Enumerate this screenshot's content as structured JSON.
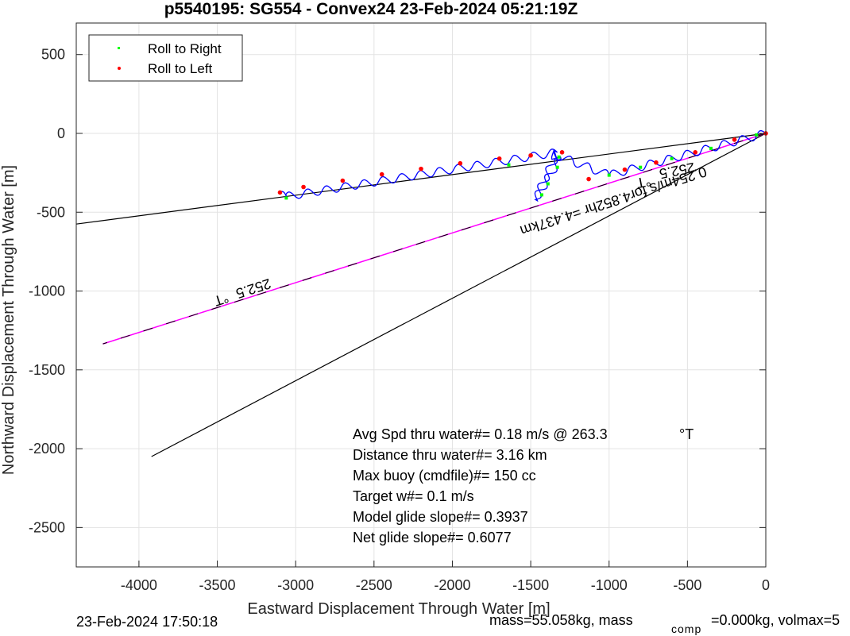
{
  "chart_data": {
    "type": "line",
    "title": "p5540195: SG554 - Convex24 23-Feb-2024 05:21:19Z",
    "xlabel": "Eastward Displacement Through Water [m]",
    "ylabel": "Northward Displacement Through Water [m]",
    "xlim": [
      -4400,
      0
    ],
    "ylim": [
      -2750,
      700
    ],
    "xticks": [
      -4000,
      -3500,
      -3000,
      -2500,
      -2000,
      -1500,
      -1000,
      -500,
      0
    ],
    "yticks": [
      500,
      0,
      -500,
      -1000,
      -1500,
      -2000,
      -2500
    ],
    "grid": true,
    "legend_position": "top-left",
    "legend": [
      "Roll to Right",
      "Roll to Left"
    ],
    "series": [
      {
        "name": "track",
        "color": "#0000ff",
        "points": [
          [
            0,
            0
          ],
          [
            -1000,
            -265
          ],
          [
            -1360,
            -130
          ],
          [
            -1350,
            -160
          ],
          [
            -1310,
            -150
          ],
          [
            -1470,
            -420
          ],
          [
            -1330,
            -120
          ],
          [
            -3060,
            -400
          ],
          [
            -3110,
            -370
          ]
        ]
      },
      {
        "name": "Roll to Right",
        "color": "#00ff00",
        "points": [
          [
            -60,
            -10
          ],
          [
            -350,
            -95
          ],
          [
            -600,
            -160
          ],
          [
            -800,
            -215
          ],
          [
            -1000,
            -265
          ],
          [
            -1320,
            -150
          ],
          [
            -1330,
            -215
          ],
          [
            -1390,
            -320
          ],
          [
            -1430,
            -390
          ],
          [
            -1640,
            -200
          ],
          [
            -3060,
            -410
          ]
        ]
      },
      {
        "name": "Roll to Left",
        "color": "#ff0000",
        "points": [
          [
            0,
            0
          ],
          [
            -200,
            -40
          ],
          [
            -450,
            -120
          ],
          [
            -700,
            -185
          ],
          [
            -900,
            -230
          ],
          [
            -1130,
            -290
          ],
          [
            -1300,
            -120
          ],
          [
            -1500,
            -140
          ],
          [
            -1700,
            -160
          ],
          [
            -1950,
            -190
          ],
          [
            -2200,
            -225
          ],
          [
            -2450,
            -260
          ],
          [
            -2700,
            -300
          ],
          [
            -2950,
            -340
          ],
          [
            -3100,
            -375
          ]
        ]
      },
      {
        "name": "heading line 252.5 upper",
        "color": "#000000",
        "points": [
          [
            0,
            0
          ],
          [
            -4400,
            -575
          ]
        ]
      },
      {
        "name": "heading line 252.5 lower",
        "color": "#000000",
        "points": [
          [
            0,
            0
          ],
          [
            -3920,
            -2050
          ]
        ]
      },
      {
        "name": "drift line",
        "color": "#ff00ff",
        "points": [
          [
            0,
            0
          ],
          [
            -4230,
            -1335
          ]
        ]
      }
    ],
    "annotations": [
      {
        "text": "252.5",
        "x": -460,
        "y": -185,
        "rotation": 169,
        "kind": "heading"
      },
      {
        "text": "°T",
        "x": -740,
        "y": -270,
        "rotation": 169,
        "kind": "deg"
      },
      {
        "text": "0.254m/s for4.852hr =4.437km",
        "x": -390,
        "y": -210,
        "rotation": 162,
        "kind": "speed"
      },
      {
        "text": "252.5",
        "x": -3170,
        "y": -920,
        "rotation": 162,
        "kind": "heading"
      },
      {
        "text": "°T",
        "x": -3440,
        "y": -1010,
        "rotation": 162,
        "kind": "deg"
      }
    ],
    "stats_box": [
      "Avg Spd thru water#=  0.18 m/s @ 263.3",
      "Distance thru water#=  3.16 km",
      "Max buoy (cmdfile)#= 150 cc",
      "Target w#= 0.1 m/s",
      "Model glide slope#= 0.3937",
      "Net glide slope#= 0.6077"
    ],
    "stats_unit": "°T"
  },
  "footer": {
    "timestamp": "23-Feb-2024 17:50:18",
    "mass": "mass=55.058kg, mass",
    "mass_sub": "comp",
    "mass_rest": "=0.000kg, volmax=5"
  }
}
